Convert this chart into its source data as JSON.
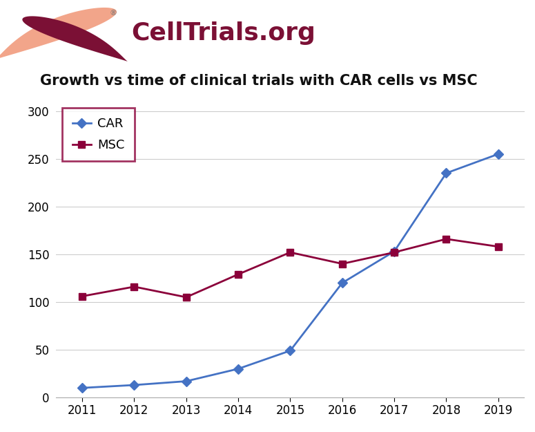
{
  "years": [
    2011,
    2012,
    2013,
    2014,
    2015,
    2016,
    2017,
    2018,
    2019
  ],
  "CAR": [
    10,
    13,
    17,
    30,
    49,
    120,
    153,
    235,
    255
  ],
  "MSC": [
    106,
    116,
    105,
    129,
    152,
    140,
    152,
    166,
    158
  ],
  "car_color": "#4472C4",
  "msc_color": "#8B003A",
  "title": "Growth vs time of clinical trials with CAR cells vs MSC",
  "header_text": "CellTrials.org",
  "ylim": [
    0,
    310
  ],
  "yticks": [
    0,
    50,
    100,
    150,
    200,
    250,
    300
  ],
  "xlim": [
    2010.5,
    2019.5
  ],
  "title_fontsize": 15,
  "header_fontsize": 26,
  "legend_fontsize": 13,
  "tick_fontsize": 12,
  "logo_peach": "#F2A58A",
  "logo_maroon": "#7B1035"
}
